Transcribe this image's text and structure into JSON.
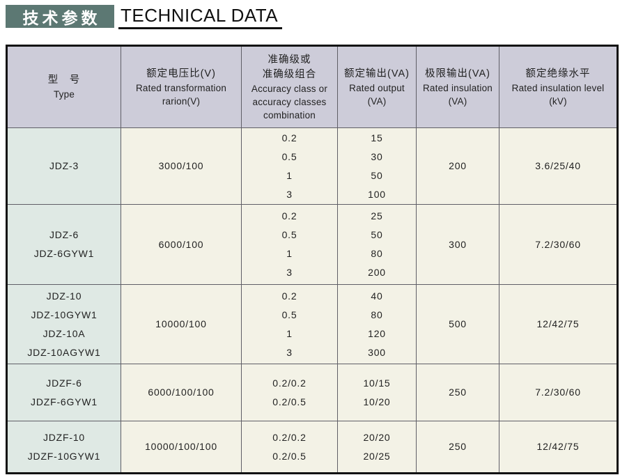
{
  "colors": {
    "title_bg": "#5c7873",
    "header_bg": "#cdccd9",
    "type_col_bg": "#dfe9e4",
    "cell_bg": "#f3f2e6",
    "border_strong": "#111111",
    "border_grid": "#5f5e66"
  },
  "header": {
    "title_zh": "技术参数",
    "title_en": "TECHNICAL DATA"
  },
  "table": {
    "columns": [
      {
        "key": "type",
        "zh": [
          "型　号"
        ],
        "en": [
          "Type"
        ]
      },
      {
        "key": "ratio",
        "zh": [
          "额定电压比(V)"
        ],
        "en": [
          "Rated transformation",
          "rarion(V)"
        ]
      },
      {
        "key": "accuracy",
        "zh": [
          "准确级或",
          "准确级组合"
        ],
        "en": [
          "Accuracy class or",
          "accuracy classes",
          "combination"
        ]
      },
      {
        "key": "output",
        "zh": [
          "额定输出(VA)"
        ],
        "en": [
          "Rated output",
          "(VA)"
        ]
      },
      {
        "key": "limit",
        "zh": [
          "极限输出(VA)"
        ],
        "en": [
          "Rated insulation",
          "(VA)"
        ]
      },
      {
        "key": "level",
        "zh": [
          "额定绝缘水平"
        ],
        "en": [
          "Rated insulation level",
          "(kV)"
        ]
      }
    ],
    "rows": [
      {
        "type": [
          "JDZ-3"
        ],
        "ratio": [
          "3000/100"
        ],
        "accuracy": [
          "0.2",
          "0.5",
          "1",
          "3"
        ],
        "output": [
          "15",
          "30",
          "50",
          "100"
        ],
        "limit": [
          "200"
        ],
        "level": [
          "3.6/25/40"
        ]
      },
      {
        "type": [
          "JDZ-6",
          "JDZ-6GYW1"
        ],
        "ratio": [
          "6000/100"
        ],
        "accuracy": [
          "0.2",
          "0.5",
          "1",
          "3"
        ],
        "output": [
          "25",
          "50",
          "80",
          "200"
        ],
        "limit": [
          "300"
        ],
        "level": [
          "7.2/30/60"
        ]
      },
      {
        "type": [
          "JDZ-10",
          "JDZ-10GYW1",
          "JDZ-10A",
          "JDZ-10AGYW1"
        ],
        "ratio": [
          "10000/100"
        ],
        "accuracy": [
          "0.2",
          "0.5",
          "1",
          "3"
        ],
        "output": [
          "40",
          "80",
          "120",
          "300"
        ],
        "limit": [
          "500"
        ],
        "level": [
          "12/42/75"
        ]
      },
      {
        "type": [
          "JDZF-6",
          "JDZF-6GYW1"
        ],
        "ratio": [
          "6000/100/100"
        ],
        "accuracy": [
          "0.2/0.2",
          "0.2/0.5"
        ],
        "output": [
          "10/15",
          "10/20"
        ],
        "limit": [
          "250"
        ],
        "level": [
          "7.2/30/60"
        ]
      },
      {
        "type": [
          "JDZF-10",
          "JDZF-10GYW1"
        ],
        "ratio": [
          "10000/100/100"
        ],
        "accuracy": [
          "0.2/0.2",
          "0.2/0.5"
        ],
        "output": [
          "20/20",
          "20/25"
        ],
        "limit": [
          "250"
        ],
        "level": [
          "12/42/75"
        ]
      }
    ]
  }
}
